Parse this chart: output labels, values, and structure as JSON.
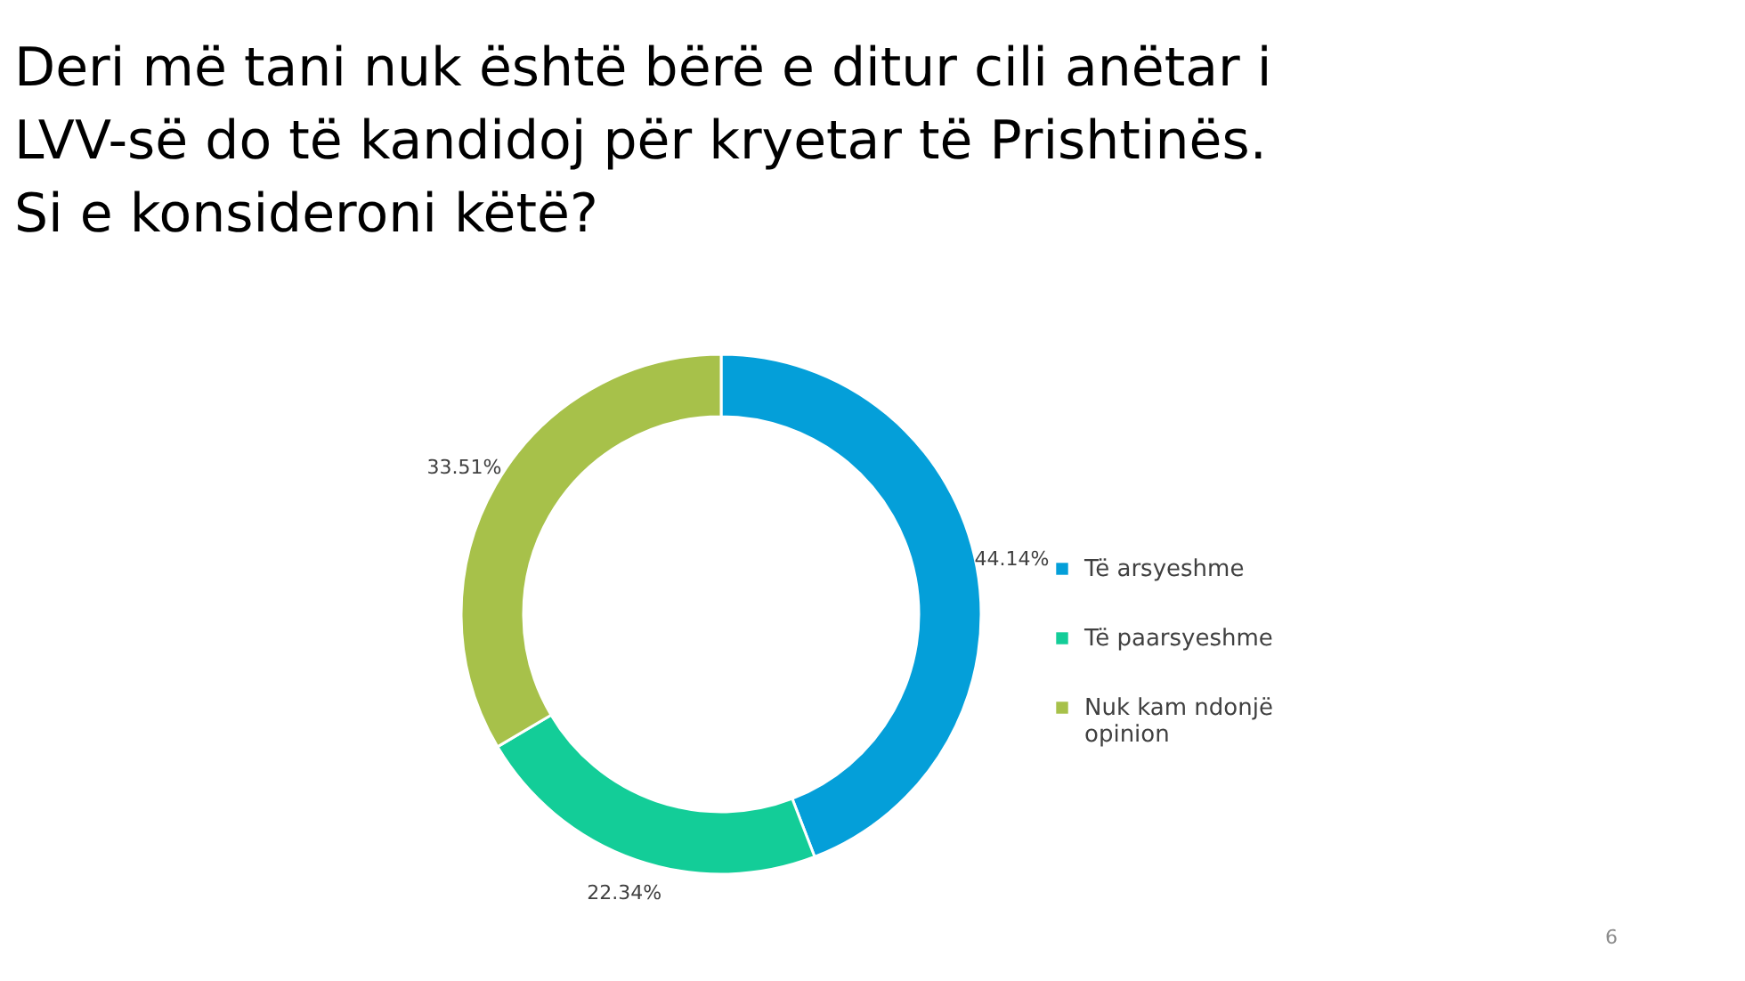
{
  "chart_data": {
    "type": "donut",
    "title": "Deri më tani nuk është bërë e ditur cili anëtar i LVV-së do të kandidoj për kryetar të Prishtinës. Si e konsideroni këtë?",
    "categories": [
      "Të arsyeshme",
      "Të paarsyeshme",
      "Nuk kam ndonjë opinion"
    ],
    "values": [
      44.14,
      22.34,
      33.51
    ],
    "colors": [
      "#049fd9",
      "#13cd98",
      "#a7c14a"
    ],
    "value_labels": [
      "44.14%",
      "22.34%",
      "33.51%"
    ],
    "legend": "right",
    "annotations": [
      "6"
    ]
  }
}
